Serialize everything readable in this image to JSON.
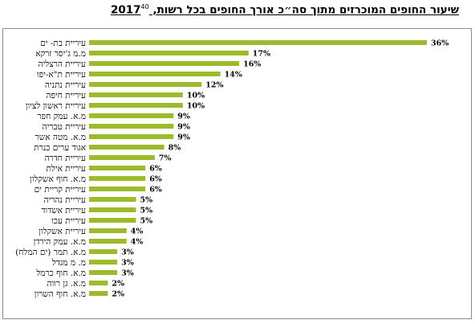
{
  "title": {
    "text": "שיעור החופים המוכרזים מתוך סה״כ אורך החופים בכל רשות, 2017",
    "footnote": "40"
  },
  "chart_data": {
    "type": "bar",
    "orientation": "horizontal",
    "title": "שיעור החופים המוכרזים מתוך סה״כ אורך החופים בכל רשות, 2017",
    "categories": [
      "עיריית בת- ים",
      "מ.מ ג'יסר זרקא",
      "עיריית הרצליה",
      "עיריית ת\"א-יפו",
      "עיריית נתניה",
      "עיריית חיפה",
      "עיריית ראשון לציון",
      "מ.א. עמק חפר",
      "עיריית טבריה",
      "מ.א. מטה אשר",
      "אגוד ערים כנרת",
      "עיריית חדרה",
      "עיריית אילת",
      "מ.א. חוף אשקלון",
      "עיריית קריית ים",
      "עיריית נהריה",
      "עיריית אשדוד",
      "עיריית עכו",
      "עיריית אשקלון",
      "מ.א. עמק הירדן",
      "מ.א. תמר (ים המלח)",
      "מ. מ מגדל",
      "מ.א. חוף כרמל",
      "מ.א. גן רווה",
      "מ.א. חוף השרון"
    ],
    "values": [
      36,
      17,
      16,
      14,
      12,
      10,
      10,
      9,
      9,
      9,
      8,
      7,
      6,
      6,
      6,
      5,
      5,
      5,
      4,
      4,
      3,
      3,
      3,
      2,
      2
    ],
    "value_suffix": "%",
    "unit": "%",
    "xlim": [
      0,
      36
    ],
    "grid": false,
    "legend": "none",
    "bar_color": "#9bbb2b"
  }
}
